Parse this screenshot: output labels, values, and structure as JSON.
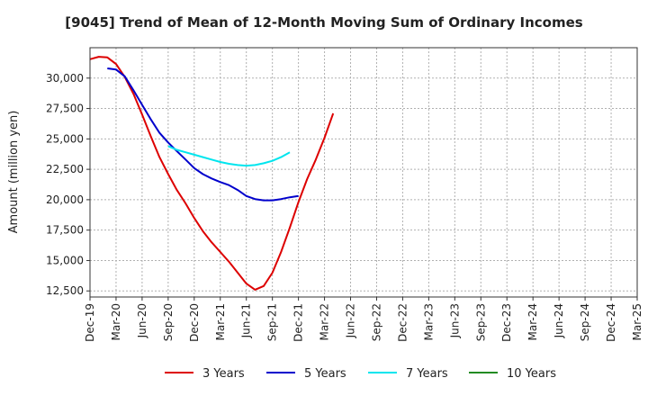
{
  "chart_data": {
    "type": "line",
    "title": "[9045]  Trend of Mean of 12-Month Moving Sum of Ordinary Incomes",
    "xlabel": "",
    "ylabel": "Amount (million yen)",
    "ylim": [
      12000,
      32500
    ],
    "yticks": [
      12500,
      15000,
      17500,
      20000,
      22500,
      25000,
      27500,
      30000
    ],
    "ytick_labels": [
      "12,500",
      "15,000",
      "17,500",
      "20,000",
      "22,500",
      "25,000",
      "27,500",
      "30,000"
    ],
    "xticks": [
      "Dec-19",
      "Mar-20",
      "Jun-20",
      "Sep-20",
      "Dec-20",
      "Mar-21",
      "Jun-21",
      "Sep-21",
      "Dec-21",
      "Mar-22",
      "Jun-22",
      "Sep-22",
      "Dec-22",
      "Mar-23",
      "Jun-23",
      "Sep-23",
      "Dec-23",
      "Mar-24",
      "Jun-24",
      "Sep-24",
      "Dec-24",
      "Mar-25"
    ],
    "grid": true,
    "legend_position": "bottom",
    "series": [
      {
        "name": "3 Years",
        "color": "#dd0000",
        "points": [
          [
            0,
            31550
          ],
          [
            1,
            31750
          ],
          [
            2,
            31700
          ],
          [
            3,
            31150
          ],
          [
            4,
            30100
          ],
          [
            5,
            28700
          ],
          [
            6,
            27000
          ],
          [
            7,
            25200
          ],
          [
            8,
            23500
          ],
          [
            9,
            22100
          ],
          [
            10,
            20800
          ],
          [
            11,
            19700
          ],
          [
            12,
            18500
          ],
          [
            13,
            17400
          ],
          [
            14,
            16500
          ],
          [
            15,
            15700
          ],
          [
            16,
            14900
          ],
          [
            17,
            14000
          ],
          [
            18,
            13100
          ],
          [
            19,
            12600
          ],
          [
            20,
            12900
          ],
          [
            21,
            14000
          ],
          [
            22,
            15700
          ],
          [
            23,
            17700
          ],
          [
            24,
            19800
          ],
          [
            25,
            21700
          ],
          [
            26,
            23300
          ],
          [
            27,
            25100
          ],
          [
            28,
            27100
          ]
        ]
      },
      {
        "name": "5 Years",
        "color": "#0000cc",
        "points": [
          [
            2,
            30800
          ],
          [
            3,
            30700
          ],
          [
            4,
            30150
          ],
          [
            5,
            29000
          ],
          [
            6,
            27800
          ],
          [
            7,
            26600
          ],
          [
            8,
            25500
          ],
          [
            9,
            24700
          ],
          [
            10,
            24000
          ],
          [
            11,
            23300
          ],
          [
            12,
            22600
          ],
          [
            13,
            22100
          ],
          [
            14,
            21750
          ],
          [
            15,
            21450
          ],
          [
            16,
            21200
          ],
          [
            17,
            20800
          ],
          [
            18,
            20300
          ],
          [
            19,
            20050
          ],
          [
            20,
            19950
          ],
          [
            21,
            19950
          ],
          [
            22,
            20050
          ],
          [
            23,
            20200
          ],
          [
            24,
            20300
          ]
        ]
      },
      {
        "name": "7 Years",
        "color": "#00e5ee",
        "points": [
          [
            9,
            24400
          ],
          [
            10,
            24100
          ],
          [
            11,
            23900
          ],
          [
            12,
            23700
          ],
          [
            13,
            23500
          ],
          [
            14,
            23300
          ],
          [
            15,
            23100
          ],
          [
            16,
            22950
          ],
          [
            17,
            22850
          ],
          [
            18,
            22800
          ],
          [
            19,
            22850
          ],
          [
            20,
            23000
          ],
          [
            21,
            23200
          ],
          [
            22,
            23500
          ],
          [
            23,
            23900
          ]
        ]
      },
      {
        "name": "10 Years",
        "color": "#228b22",
        "points": []
      }
    ]
  }
}
